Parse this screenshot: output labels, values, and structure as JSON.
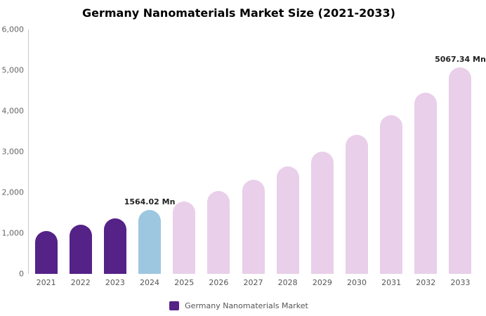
{
  "chart_data": {
    "type": "bar",
    "title": "Germany Nanomaterials Market Size (2021-2033)",
    "categories": [
      "2021",
      "2022",
      "2023",
      "2024",
      "2025",
      "2026",
      "2027",
      "2028",
      "2029",
      "2030",
      "2031",
      "2032",
      "2033"
    ],
    "values": [
      1050,
      1200,
      1370,
      1564.02,
      1780,
      2030,
      2310,
      2640,
      3000,
      3420,
      3900,
      4450,
      5067.34
    ],
    "ylim": [
      0,
      6000
    ],
    "y_ticks": [
      "0",
      "1,000",
      "2,000",
      "3,000",
      "4,000",
      "5,000",
      "6,000"
    ],
    "bar_colors": [
      "#552287",
      "#552287",
      "#552287",
      "#9dc7e0",
      "#e9cfe9",
      "#e9cfe9",
      "#e9cfe9",
      "#e9cfe9",
      "#e9cfe9",
      "#e9cfe9",
      "#e9cfe9",
      "#e9cfe9",
      "#e9cfe9"
    ],
    "annotations": {
      "2024": "1564.02 Mn",
      "2033": "5067.34 Mn"
    },
    "grid": false,
    "legend_position": "bottom",
    "legend": {
      "label": "Germany Nanomaterials Market",
      "swatch_color": "#552287"
    },
    "colors": {
      "historical_bar": "#552287",
      "current_year_bar": "#9dc7e0",
      "forecast_bar": "#e9cfe9",
      "axis_line": "#c8c8c8",
      "tick_text": "#666666"
    }
  }
}
